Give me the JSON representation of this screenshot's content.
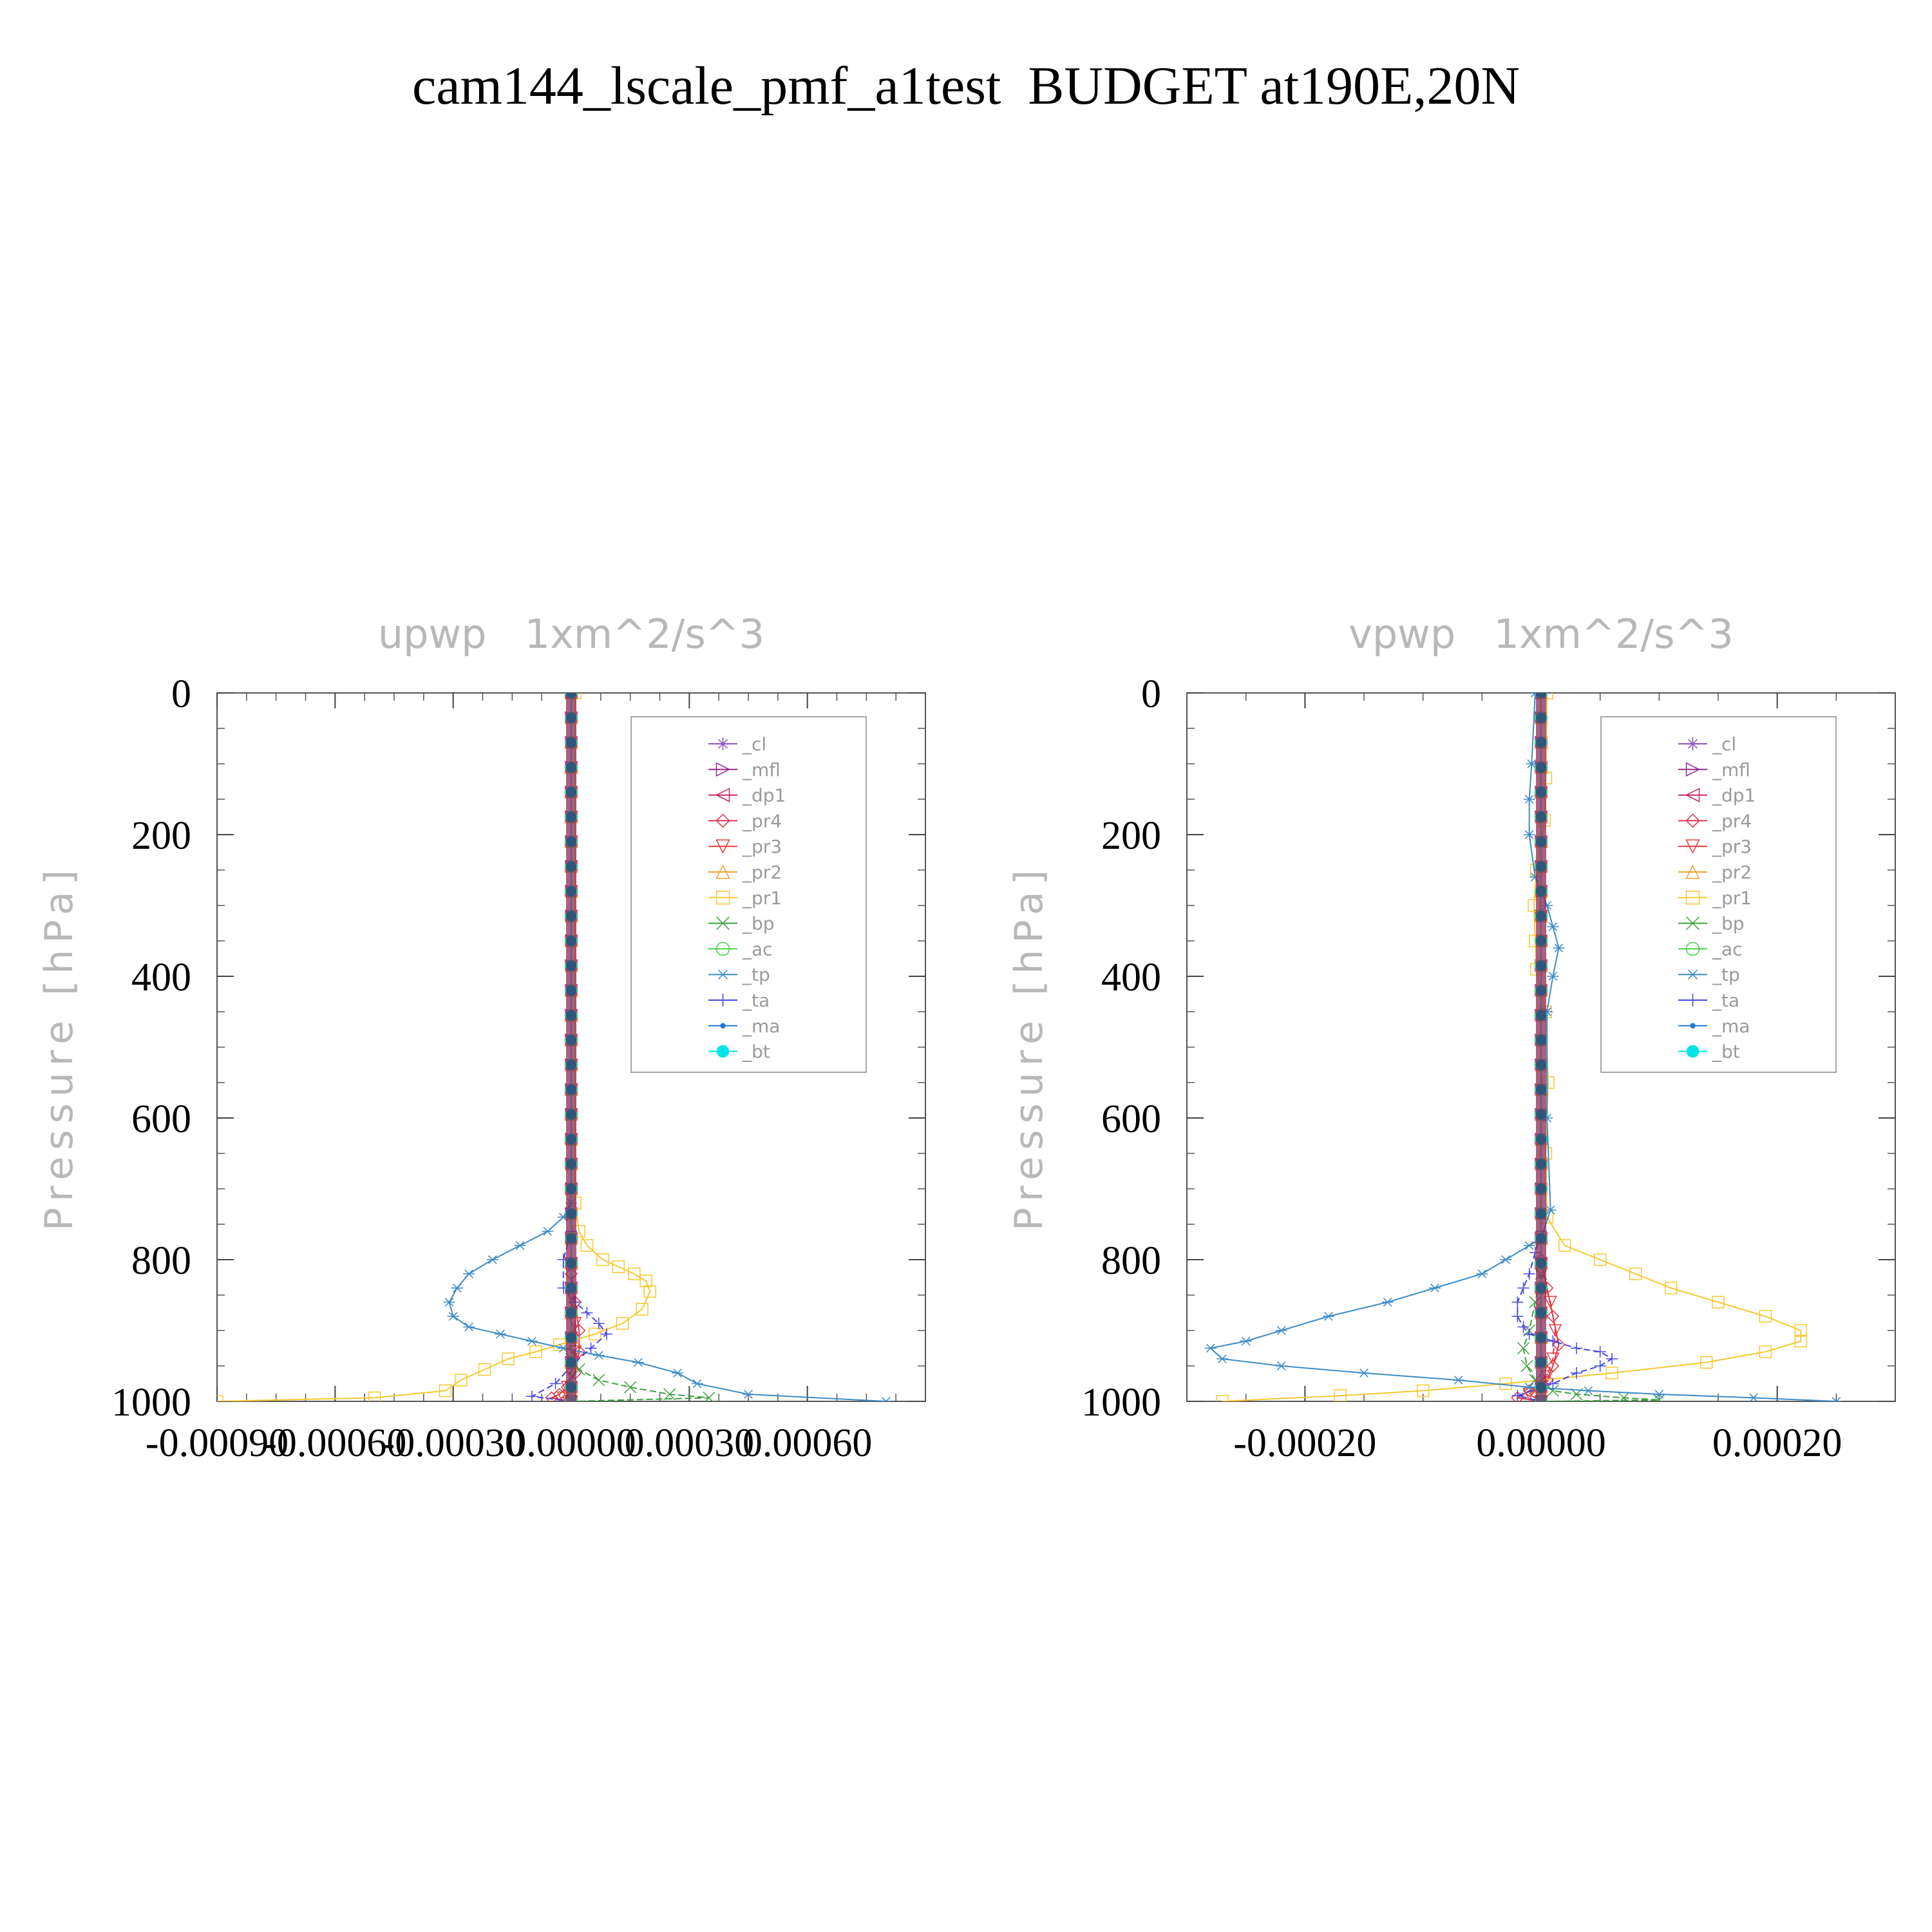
{
  "figure": {
    "title": "cam144_lscale_pmf_a1test  BUDGET at190E,20N"
  },
  "chart_data": [
    {
      "type": "line",
      "title": "upwp   1xm^2/s^3",
      "xlabel": "",
      "ylabel": "Pressure [hPa]",
      "ylim": [
        1000,
        0
      ],
      "xlim": [
        -0.0009,
        0.0009
      ],
      "xticks": [
        -0.0009,
        -0.0006,
        -0.0003,
        0.0,
        0.0003,
        0.0006
      ],
      "xtick_labels": [
        "-0.00090",
        "-0.00060",
        "-0.00030",
        "0.00000",
        "0.00030",
        "0.00060"
      ],
      "yticks": [
        0,
        200,
        400,
        600,
        800,
        1000
      ],
      "ytick_labels": [
        "0",
        "200",
        "400",
        "600",
        "800",
        "1000"
      ],
      "legend_position": "top-right",
      "series": [
        {
          "name": "_cl",
          "color": "#8c52c4",
          "marker": "star",
          "x": [
            0,
            0
          ],
          "y": [
            0,
            1000
          ]
        },
        {
          "name": "_mfl",
          "color": "#96288c",
          "marker": "tri-right",
          "x": [
            0,
            0
          ],
          "y": [
            0,
            1000
          ]
        },
        {
          "name": "_dp1",
          "color": "#c8285a",
          "marker": "tri-left",
          "x": [
            0,
            0
          ],
          "y": [
            0,
            1000
          ]
        },
        {
          "name": "_pr4",
          "color": "#e0304a",
          "marker": "diamond",
          "x": [
            0,
            0,
            1e-05,
            2e-05,
            2e-05,
            1e-05,
            -1e-05,
            -3e-05,
            -5e-05,
            0
          ],
          "y": [
            0,
            820,
            860,
            900,
            930,
            960,
            980,
            990,
            995,
            1000
          ]
        },
        {
          "name": "_pr3",
          "color": "#e83c3c",
          "marker": "tri-down",
          "x": [
            0,
            0,
            1e-05,
            1e-05,
            0,
            -1e-05,
            -2e-05,
            0
          ],
          "y": [
            0,
            850,
            890,
            930,
            960,
            980,
            995,
            1000
          ]
        },
        {
          "name": "_pr2",
          "color": "#f0a030",
          "marker": "tri-up",
          "x": [
            0,
            0
          ],
          "y": [
            0,
            1000
          ]
        },
        {
          "name": "_pr1",
          "color": "#f5c830",
          "marker": "square",
          "x": [
            1e-05,
            1e-05,
            2e-05,
            4e-05,
            8e-05,
            0.00012,
            0.00016,
            0.00019,
            0.0002,
            0.00018,
            0.00013,
            6e-05,
            -3e-05,
            -9e-05,
            -0.00016,
            -0.00022,
            -0.00028,
            -0.00032,
            -0.0005,
            -0.0009
          ],
          "y": [
            0,
            720,
            760,
            780,
            800,
            810,
            820,
            830,
            845,
            870,
            890,
            905,
            920,
            930,
            940,
            955,
            970,
            985,
            995,
            1000
          ]
        },
        {
          "name": "_bp",
          "color": "#3ca03c",
          "marker": "x",
          "x": [
            0,
            0,
            2e-05,
            7e-05,
            0.00015,
            0.00025,
            0.00035,
            0
          ],
          "y": [
            0,
            940,
            955,
            970,
            980,
            990,
            995,
            1000
          ]
        },
        {
          "name": "_ac",
          "color": "#46d246",
          "marker": "circle",
          "x": [
            0,
            0
          ],
          "y": [
            0,
            1000
          ]
        },
        {
          "name": "_tp",
          "color": "#3c8cc8",
          "marker": "asterisk",
          "x": [
            0,
            0,
            -2e-05,
            -6e-05,
            -0.00013,
            -0.0002,
            -0.00026,
            -0.00029,
            -0.00031,
            -0.0003,
            -0.00026,
            -0.00018,
            -0.0001,
            -2e-05,
            7e-05,
            0.00017,
            0.00027,
            0.00032,
            0.00045,
            0.0008
          ],
          "y": [
            0,
            720,
            740,
            760,
            780,
            800,
            820,
            840,
            860,
            880,
            895,
            905,
            915,
            925,
            935,
            945,
            960,
            975,
            990,
            1000
          ]
        },
        {
          "name": "_ta",
          "color": "#4646e6",
          "marker": "plus",
          "x": [
            0,
            0,
            -2e-05,
            -2e-05,
            1e-05,
            4e-05,
            7e-05,
            9e-05,
            5e-05,
            0,
            -4e-05,
            -0.0001,
            0
          ],
          "y": [
            0,
            760,
            800,
            840,
            860,
            875,
            890,
            905,
            925,
            950,
            975,
            993,
            1000
          ]
        },
        {
          "name": "_ma",
          "color": "#2878d2",
          "marker": "dot",
          "x": [
            0,
            0
          ],
          "y": [
            0,
            1000
          ]
        },
        {
          "name": "_bt",
          "color": "#00e6e6",
          "marker": "big-dot",
          "x": [
            0,
            0
          ],
          "y": [
            0,
            1000
          ]
        }
      ]
    },
    {
      "type": "line",
      "title": "vpwp   1xm^2/s^3",
      "xlabel": "",
      "ylabel": "Pressure [hPa]",
      "ylim": [
        1000,
        0
      ],
      "xlim": [
        -0.0003,
        0.0003
      ],
      "xticks": [
        -0.0002,
        0.0,
        0.0002
      ],
      "xtick_labels": [
        "-0.00020",
        "0.00000",
        "0.00020"
      ],
      "yticks": [
        0,
        200,
        400,
        600,
        800,
        1000
      ],
      "ytick_labels": [
        "0",
        "200",
        "400",
        "600",
        "800",
        "1000"
      ],
      "legend_position": "top-right",
      "series": [
        {
          "name": "_cl",
          "color": "#8c52c4",
          "marker": "star",
          "x": [
            0,
            0
          ],
          "y": [
            0,
            1000
          ]
        },
        {
          "name": "_mfl",
          "color": "#96288c",
          "marker": "tri-right",
          "x": [
            0,
            0
          ],
          "y": [
            0,
            1000
          ]
        },
        {
          "name": "_dp1",
          "color": "#c8285a",
          "marker": "tri-left",
          "x": [
            0,
            0
          ],
          "y": [
            0,
            1000
          ]
        },
        {
          "name": "_pr4",
          "color": "#e0304a",
          "marker": "diamond",
          "x": [
            0,
            0,
            5e-06,
            1e-05,
            1.5e-05,
            1e-05,
            5e-06,
            -1e-05,
            -2e-05,
            0
          ],
          "y": [
            0,
            800,
            840,
            880,
            920,
            950,
            970,
            985,
            995,
            1000
          ]
        },
        {
          "name": "_pr3",
          "color": "#e83c3c",
          "marker": "tri-down",
          "x": [
            0,
            0,
            8e-06,
            1.2e-05,
            1e-05,
            5e-06,
            -1e-05,
            0
          ],
          "y": [
            0,
            820,
            860,
            900,
            940,
            965,
            990,
            1000
          ]
        },
        {
          "name": "_pr2",
          "color": "#f0a030",
          "marker": "tri-up",
          "x": [
            0,
            0
          ],
          "y": [
            0,
            1000
          ]
        },
        {
          "name": "_pr1",
          "color": "#f5c830",
          "marker": "square",
          "x": [
            5e-06,
            4e-06,
            3e-06,
            -4e-06,
            -6e-06,
            -5e-06,
            -4e-06,
            4e-06,
            6e-06,
            4e-06,
            5e-06,
            2e-05,
            5e-05,
            8e-05,
            0.00011,
            0.00015,
            0.00019,
            0.00022,
            0.00022,
            0.00019,
            0.00014,
            6e-05,
            -3e-05,
            -0.0001,
            -0.00017,
            -0.00027
          ],
          "y": [
            0,
            120,
            180,
            250,
            300,
            350,
            390,
            450,
            550,
            650,
            740,
            780,
            800,
            820,
            840,
            860,
            880,
            900,
            915,
            930,
            945,
            960,
            975,
            985,
            992,
            1000
          ]
        },
        {
          "name": "_bp",
          "color": "#3ca03c",
          "marker": "x",
          "x": [
            0,
            0,
            -5e-06,
            -1e-05,
            -1.5e-05,
            -1.2e-05,
            -5e-06,
            1e-05,
            3e-05,
            7e-05,
            0.0001,
            0
          ],
          "y": [
            0,
            820,
            860,
            900,
            925,
            950,
            970,
            985,
            990,
            995,
            998,
            1000
          ]
        },
        {
          "name": "_ac",
          "color": "#46d246",
          "marker": "circle",
          "x": [
            0,
            0
          ],
          "y": [
            0,
            1000
          ]
        },
        {
          "name": "_tp",
          "color": "#3c8cc8",
          "marker": "asterisk",
          "x": [
            -5e-06,
            -8e-06,
            -1e-05,
            -1e-05,
            -5e-06,
            5e-06,
            1e-05,
            1.5e-05,
            1e-05,
            5e-06,
            5e-06,
            8e-06,
            0,
            -1e-05,
            -3e-05,
            -5e-05,
            -9e-05,
            -0.00013,
            -0.00018,
            -0.00022,
            -0.00025,
            -0.00028,
            -0.00027,
            -0.00022,
            -0.00015,
            -7e-05,
            -1e-05,
            4e-05,
            0.0001,
            0.00018,
            0.00025
          ],
          "y": [
            0,
            100,
            150,
            200,
            260,
            300,
            330,
            360,
            400,
            450,
            600,
            730,
            770,
            780,
            800,
            820,
            840,
            860,
            880,
            900,
            915,
            925,
            940,
            950,
            960,
            970,
            980,
            985,
            990,
            995,
            1000
          ]
        },
        {
          "name": "_ta",
          "color": "#4646e6",
          "marker": "plus",
          "x": [
            0,
            0,
            -5e-06,
            -1e-05,
            -1.5e-05,
            -2e-05,
            -2e-05,
            -1.5e-05,
            -1e-05,
            1e-05,
            3e-05,
            5e-05,
            6e-05,
            5e-05,
            3e-05,
            1e-05,
            -2e-05,
            0
          ],
          "y": [
            0,
            760,
            790,
            820,
            840,
            860,
            880,
            895,
            905,
            915,
            925,
            930,
            940,
            950,
            960,
            975,
            992,
            1000
          ]
        },
        {
          "name": "_ma",
          "color": "#2878d2",
          "marker": "dot",
          "x": [
            0,
            0
          ],
          "y": [
            0,
            1000
          ]
        },
        {
          "name": "_bt",
          "color": "#00e6e6",
          "marker": "big-dot",
          "x": [
            0,
            0
          ],
          "y": [
            0,
            1000
          ]
        }
      ]
    }
  ]
}
